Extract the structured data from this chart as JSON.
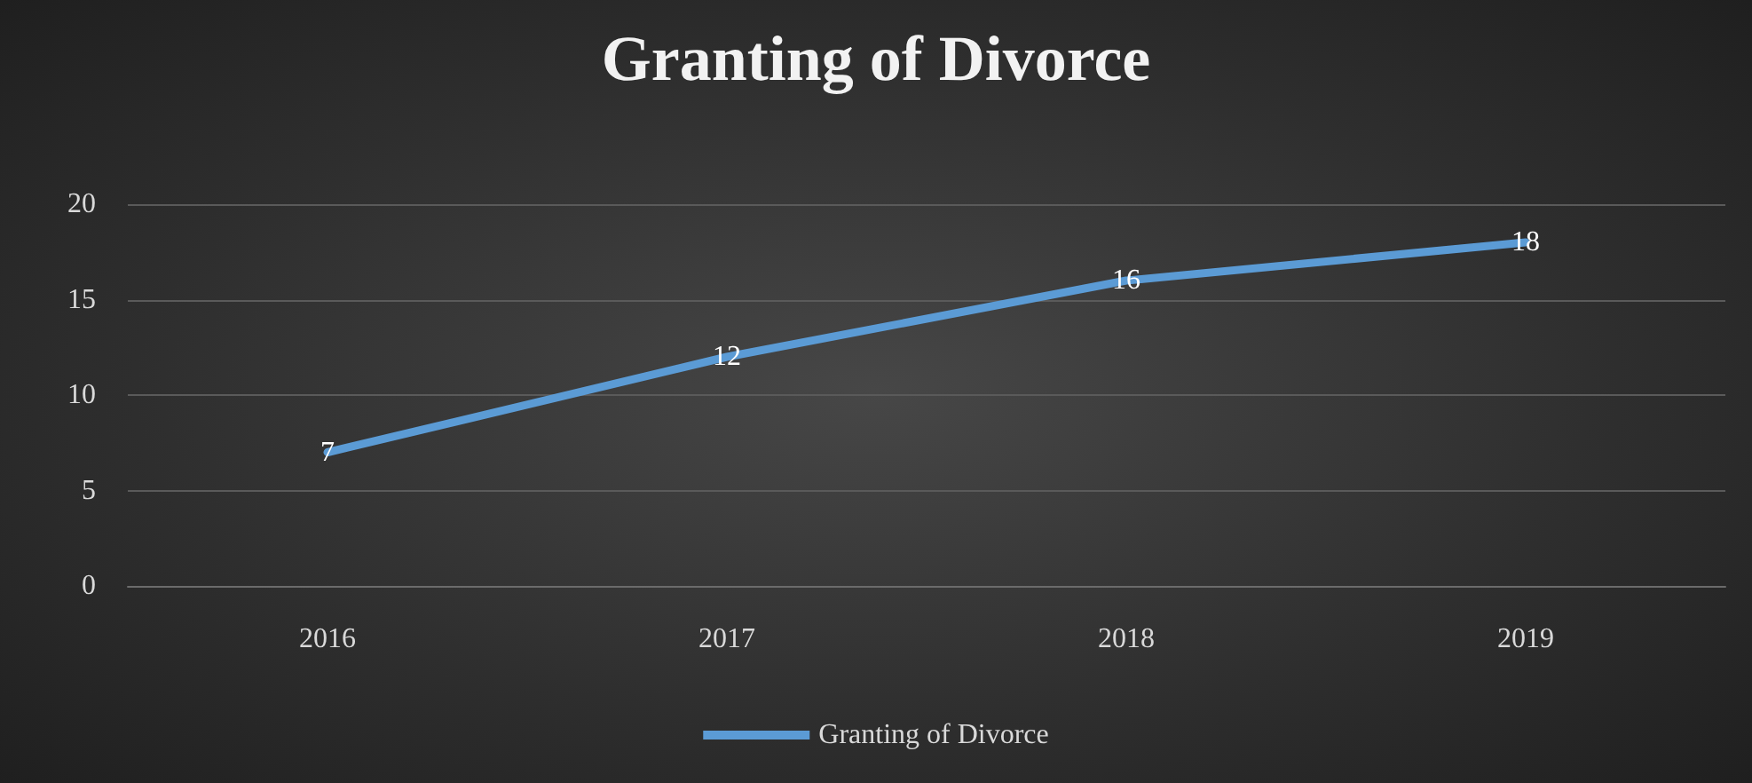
{
  "chart_data": {
    "type": "line",
    "title": "Granting of Divorce",
    "categories": [
      "2016",
      "2017",
      "2018",
      "2019"
    ],
    "series": [
      {
        "name": "Granting of Divorce",
        "color": "#5b9bd5",
        "values": [
          7,
          12,
          16,
          18
        ]
      }
    ],
    "ylim": [
      0,
      20
    ],
    "yticks": [
      0,
      5,
      10,
      15,
      20
    ],
    "grid": "y",
    "legend": "bottom",
    "marker": "none",
    "line_style": "solid",
    "data_labels": true
  }
}
